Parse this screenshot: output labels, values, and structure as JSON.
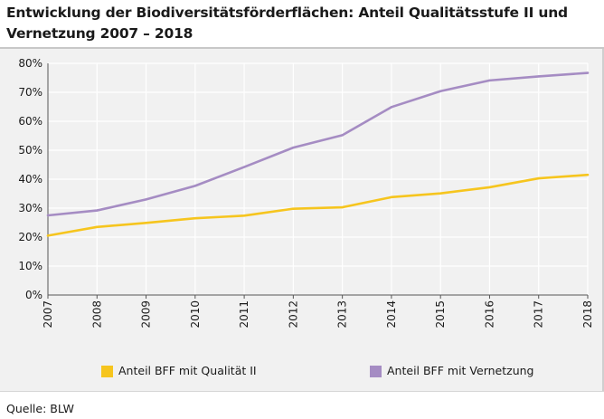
{
  "chart_data": {
    "type": "line",
    "title": "Entwicklung der Biodiversitätsförderflächen: Anteil Qualitätsstufe II und Vernetzung 2007 – 2018",
    "title_line1": "Entwicklung der Biodiversitätsförderflächen: Anteil Qualitätsstufe II und",
    "title_line2": "Vernetzung 2007 – 2018",
    "x": [
      "2007",
      "2008",
      "2009",
      "2010",
      "2011",
      "2012",
      "2013",
      "2014",
      "2015",
      "2016",
      "2017",
      "2018"
    ],
    "series": [
      {
        "name": "Anteil BFF mit Qualität II",
        "color": "#f6c51e",
        "values": [
          20.5,
          23.5,
          24.9,
          26.5,
          27.4,
          29.8,
          30.3,
          33.8,
          35.1,
          37.2,
          40.3,
          41.5
        ]
      },
      {
        "name": "Anteil BFF mit Vernetzung",
        "color": "#a58cc3",
        "values": [
          27.5,
          29.2,
          33.0,
          37.7,
          44.2,
          50.9,
          55.2,
          64.9,
          70.4,
          74.1,
          75.5,
          76.7
        ]
      }
    ],
    "yticks": [
      "0%",
      "10%",
      "20%",
      "30%",
      "40%",
      "50%",
      "60%",
      "70%",
      "80%"
    ],
    "ylim": [
      0,
      80
    ],
    "xlabel": "",
    "ylabel": "",
    "grid": true,
    "legend_position": "bottom"
  },
  "source": "Quelle: BLW"
}
